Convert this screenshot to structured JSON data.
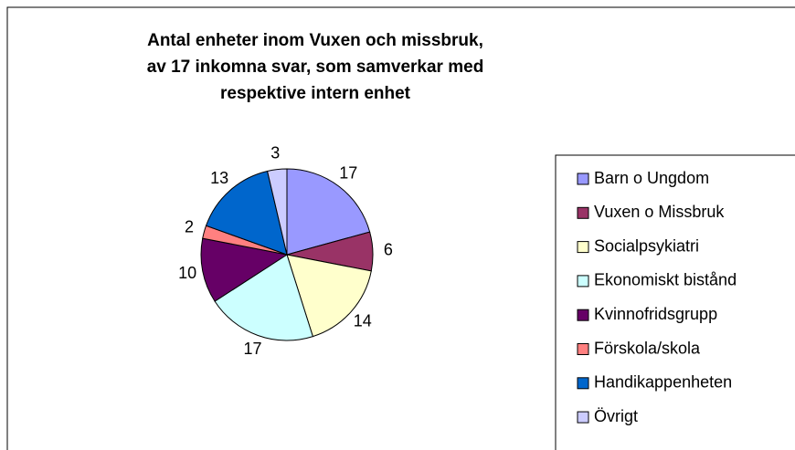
{
  "chart_data": {
    "type": "pie",
    "title": [
      "Antal enheter inom Vuxen och missbruk,",
      "av 17 inkomna svar, som samverkar med",
      "respektive intern enhet"
    ],
    "categories": [
      "Barn o Ungdom",
      "Vuxen o Missbruk",
      "Socialpsykiatri",
      "Ekonomiskt bistånd",
      "Kvinnofridsgrupp",
      "Förskola/skola",
      "Handikappenheten",
      "Övrigt"
    ],
    "values": [
      17,
      6,
      14,
      17,
      10,
      2,
      13,
      3
    ],
    "colors": [
      "#9999ff",
      "#993366",
      "#ffffcc",
      "#ccffff",
      "#660066",
      "#ff8080",
      "#0066cc",
      "#ccccff"
    ],
    "legend": "right"
  }
}
